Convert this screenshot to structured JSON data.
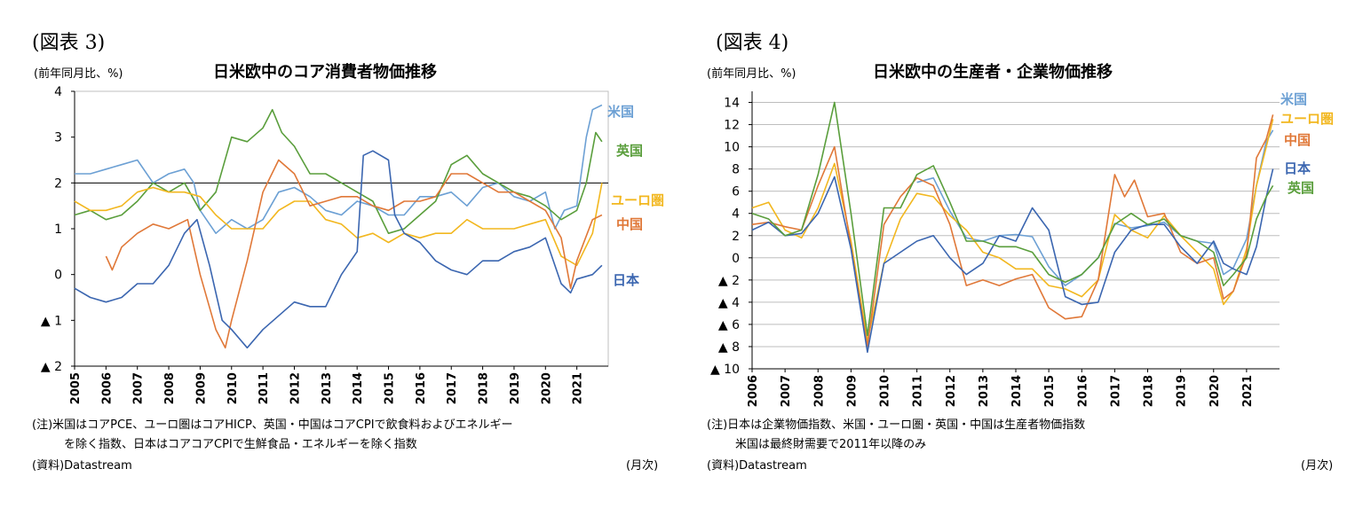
{
  "figures": [
    {
      "label": "(図表 3)",
      "unit": "(前年同月比、%)",
      "title": "日米欧中のコア消費者物価推移",
      "notes": [
        "(注)米国はコアPCE、ユーロ圏はコアHICP、英国・中国はコアCPIで飲食料およびエネルギー",
        "を除く指数、日本はコアコアCPIで生鮮食品・エネルギーを除く指数"
      ],
      "source": "(資料)Datastream",
      "xunit": "(月次)"
    },
    {
      "label": "(図表 4)",
      "unit": "(前年同月比、%)",
      "title": "日米欧中の生産者・企業物価推移",
      "notes": [
        "(注)日本は企業物価指数、米国・ユーロ圏・英国・中国は生産者物価指数",
        "米国は最終財需要で2011年以降のみ"
      ],
      "source": "(資料)Datastream",
      "xunit": "(月次)"
    }
  ],
  "colors": {
    "us": "#6ca0d4",
    "uk": "#5a9e3c",
    "eu": "#f2b71f",
    "cn": "#e07838",
    "jp": "#3b66b0"
  },
  "chart_data": [
    {
      "type": "line",
      "title": "日米欧中のコア消費者物価推移",
      "ylabel": "(前年同月比、%)",
      "xlabel": "(月次)",
      "ylim": [
        -2,
        4
      ],
      "xlim": [
        2005,
        2022
      ],
      "ytick_values": [
        4,
        3,
        2,
        1,
        0,
        -1,
        -2
      ],
      "ytick_labels": [
        "4",
        "3",
        "2",
        "1",
        "0",
        "▲ 1",
        "▲ 2"
      ],
      "xtick_values": [
        2005,
        2006,
        2007,
        2008,
        2009,
        2010,
        2011,
        2012,
        2013,
        2014,
        2015,
        2016,
        2017,
        2018,
        2019,
        2020,
        2021
      ],
      "xtick_labels": [
        "2005",
        "2006",
        "2007",
        "2008",
        "2009",
        "2010",
        "2011",
        "2012",
        "2013",
        "2014",
        "2015",
        "2016",
        "2017",
        "2018",
        "2019",
        "2020",
        "2021"
      ],
      "reference_line": 2,
      "series": [
        {
          "key": "us",
          "name": "米国",
          "x": [
            2005,
            2005.5,
            2006,
            2006.5,
            2007,
            2007.5,
            2008,
            2008.5,
            2008.8,
            2009,
            2009.5,
            2010,
            2010.5,
            2011,
            2011.5,
            2012,
            2012.5,
            2013,
            2013.5,
            2014,
            2014.5,
            2015,
            2015.5,
            2016,
            2016.5,
            2017,
            2017.5,
            2018,
            2018.5,
            2019,
            2019.5,
            2020,
            2020.3,
            2020.6,
            2021,
            2021.3,
            2021.5,
            2021.8
          ],
          "y": [
            2.2,
            2.2,
            2.3,
            2.4,
            2.5,
            2.0,
            2.2,
            2.3,
            2.0,
            1.4,
            0.9,
            1.2,
            1.0,
            1.2,
            1.8,
            1.9,
            1.7,
            1.4,
            1.3,
            1.6,
            1.5,
            1.3,
            1.3,
            1.7,
            1.7,
            1.8,
            1.5,
            1.9,
            2.0,
            1.7,
            1.6,
            1.8,
            1.0,
            1.4,
            1.5,
            3.0,
            3.6,
            3.7
          ]
        },
        {
          "key": "uk",
          "name": "英国",
          "x": [
            2005,
            2005.5,
            2006,
            2006.5,
            2007,
            2007.5,
            2008,
            2008.5,
            2009,
            2009.5,
            2010,
            2010.5,
            2011,
            2011.3,
            2011.6,
            2012,
            2012.5,
            2013,
            2013.5,
            2014,
            2014.5,
            2015,
            2015.5,
            2016,
            2016.5,
            2017,
            2017.5,
            2018,
            2018.5,
            2019,
            2019.5,
            2020,
            2020.5,
            2021,
            2021.3,
            2021.6,
            2021.8
          ],
          "y": [
            1.3,
            1.4,
            1.2,
            1.3,
            1.6,
            2.0,
            1.8,
            2.0,
            1.4,
            1.8,
            3.0,
            2.9,
            3.2,
            3.6,
            3.1,
            2.8,
            2.2,
            2.2,
            2.0,
            1.8,
            1.6,
            0.9,
            1.0,
            1.3,
            1.6,
            2.4,
            2.6,
            2.2,
            2.0,
            1.8,
            1.7,
            1.5,
            1.2,
            1.4,
            2.0,
            3.1,
            2.9
          ]
        },
        {
          "key": "eu",
          "name": "ユーロ圏",
          "x": [
            2005,
            2005.5,
            2006,
            2006.5,
            2007,
            2007.5,
            2008,
            2008.5,
            2009,
            2009.5,
            2010,
            2010.5,
            2011,
            2011.5,
            2012,
            2012.5,
            2013,
            2013.5,
            2014,
            2014.5,
            2015,
            2015.5,
            2016,
            2016.5,
            2017,
            2017.5,
            2018,
            2018.5,
            2019,
            2019.5,
            2020,
            2020.5,
            2021,
            2021.5,
            2021.8
          ],
          "y": [
            1.6,
            1.4,
            1.4,
            1.5,
            1.8,
            1.9,
            1.8,
            1.8,
            1.7,
            1.3,
            1.0,
            1.0,
            1.0,
            1.4,
            1.6,
            1.6,
            1.2,
            1.1,
            0.8,
            0.9,
            0.7,
            0.9,
            0.8,
            0.9,
            0.9,
            1.2,
            1.0,
            1.0,
            1.0,
            1.1,
            1.2,
            0.4,
            0.2,
            0.9,
            2.0
          ]
        },
        {
          "key": "cn",
          "name": "中国",
          "x": [
            2006,
            2006.2,
            2006.5,
            2007,
            2007.5,
            2008,
            2008.6,
            2009,
            2009.5,
            2009.8,
            2010,
            2010.5,
            2011,
            2011.5,
            2012,
            2012.5,
            2013,
            2013.5,
            2014,
            2014.5,
            2015,
            2015.5,
            2016,
            2016.5,
            2017,
            2017.5,
            2018,
            2018.5,
            2019,
            2019.5,
            2020,
            2020.5,
            2020.8,
            2021,
            2021.5,
            2021.8
          ],
          "y": [
            0.4,
            0.1,
            0.6,
            0.9,
            1.1,
            1.0,
            1.2,
            0.0,
            -1.2,
            -1.6,
            -1.0,
            0.3,
            1.8,
            2.5,
            2.2,
            1.5,
            1.6,
            1.7,
            1.7,
            1.5,
            1.4,
            1.6,
            1.6,
            1.7,
            2.2,
            2.2,
            2.0,
            1.8,
            1.8,
            1.6,
            1.4,
            0.8,
            -0.3,
            0.3,
            1.2,
            1.3
          ]
        },
        {
          "key": "jp",
          "name": "日本",
          "x": [
            2005,
            2005.5,
            2006,
            2006.5,
            2007,
            2007.5,
            2008,
            2008.5,
            2008.9,
            2009.3,
            2009.7,
            2010,
            2010.5,
            2011,
            2011.5,
            2012,
            2012.5,
            2013,
            2013.5,
            2014,
            2014.2,
            2014.5,
            2015,
            2015.2,
            2015.5,
            2016,
            2016.5,
            2017,
            2017.5,
            2018,
            2018.5,
            2019,
            2019.5,
            2020,
            2020.5,
            2020.8,
            2021,
            2021.5,
            2021.8
          ],
          "y": [
            -0.3,
            -0.5,
            -0.6,
            -0.5,
            -0.2,
            -0.2,
            0.2,
            0.9,
            1.2,
            0.2,
            -1.0,
            -1.2,
            -1.6,
            -1.2,
            -0.9,
            -0.6,
            -0.7,
            -0.7,
            0.0,
            0.5,
            2.6,
            2.7,
            2.5,
            1.3,
            0.9,
            0.7,
            0.3,
            0.1,
            0.0,
            0.3,
            0.3,
            0.5,
            0.6,
            0.8,
            -0.2,
            -0.4,
            -0.1,
            0.0,
            0.2
          ]
        }
      ]
    },
    {
      "type": "line",
      "title": "日米欧中の生産者・企業物価推移",
      "ylabel": "(前年同月比、%)",
      "xlabel": "(月次)",
      "ylim": [
        -10,
        15
      ],
      "xlim": [
        2006,
        2022
      ],
      "ytick_values": [
        14,
        12,
        10,
        8,
        6,
        4,
        2,
        0,
        -2,
        -4,
        -6,
        -8,
        -10
      ],
      "ytick_labels": [
        "14",
        "12",
        "10",
        "8",
        "6",
        "4",
        "2",
        "0",
        "▲ 2",
        "▲ 4",
        "▲ 6",
        "▲ 8",
        "▲ 10"
      ],
      "xtick_values": [
        2006,
        2007,
        2008,
        2009,
        2010,
        2011,
        2012,
        2013,
        2014,
        2015,
        2016,
        2017,
        2018,
        2019,
        2020,
        2021
      ],
      "xtick_labels": [
        "2006",
        "2007",
        "2008",
        "2009",
        "2010",
        "2011",
        "2012",
        "2013",
        "2014",
        "2015",
        "2016",
        "2017",
        "2018",
        "2019",
        "2020",
        "2021"
      ],
      "series": [
        {
          "key": "us",
          "name": "米国",
          "x": [
            2011,
            2011.5,
            2012,
            2012.5,
            2013,
            2013.5,
            2014,
            2014.5,
            2015,
            2015.5,
            2016,
            2016.5,
            2017,
            2017.5,
            2018,
            2018.5,
            2019,
            2019.5,
            2020,
            2020.3,
            2020.6,
            2021,
            2021.3,
            2021.6,
            2021.8
          ],
          "y": [
            6.8,
            7.2,
            4.2,
            1.8,
            1.5,
            2.0,
            2.1,
            1.9,
            -0.8,
            -2.5,
            -1.5,
            0.0,
            3.1,
            2.7,
            2.9,
            3.2,
            2.0,
            1.5,
            1.3,
            -1.5,
            -0.9,
            1.7,
            6.5,
            10.5,
            11.5
          ]
        },
        {
          "key": "eu",
          "name": "ユーロ圏",
          "x": [
            2006,
            2006.5,
            2007,
            2007.5,
            2008,
            2008.5,
            2009,
            2009.5,
            2010,
            2010.5,
            2011,
            2011.5,
            2012,
            2012.5,
            2013,
            2013.5,
            2014,
            2014.5,
            2015,
            2015.5,
            2016,
            2016.5,
            2017,
            2017.5,
            2018,
            2018.5,
            2019,
            2019.5,
            2020,
            2020.3,
            2020.6,
            2021,
            2021.3,
            2021.6,
            2021.8
          ],
          "y": [
            4.5,
            5.0,
            2.5,
            1.8,
            4.5,
            8.5,
            1.5,
            -7.5,
            -0.5,
            3.5,
            5.8,
            5.5,
            3.8,
            2.5,
            0.5,
            0.0,
            -1.0,
            -1.0,
            -2.5,
            -2.8,
            -3.5,
            -2.0,
            3.9,
            2.5,
            1.8,
            3.8,
            2.0,
            0.5,
            -1.0,
            -4.2,
            -3.0,
            0.8,
            6.5,
            10.0,
            12.5
          ]
        },
        {
          "key": "cn",
          "name": "中国",
          "x": [
            2006,
            2006.5,
            2007,
            2007.5,
            2008,
            2008.5,
            2009,
            2009.5,
            2010,
            2010.5,
            2011,
            2011.5,
            2012,
            2012.5,
            2013,
            2013.5,
            2014,
            2014.5,
            2015,
            2015.5,
            2016,
            2016.5,
            2017,
            2017.3,
            2017.6,
            2018,
            2018.5,
            2019,
            2019.5,
            2020,
            2020.3,
            2020.6,
            2021,
            2021.3,
            2021.6,
            2021.8
          ],
          "y": [
            3.0,
            3.2,
            2.8,
            2.5,
            6.5,
            10.0,
            1.0,
            -8.0,
            3.0,
            5.5,
            7.2,
            6.5,
            3.0,
            -2.5,
            -2.0,
            -2.5,
            -1.9,
            -1.5,
            -4.5,
            -5.5,
            -5.3,
            -2.0,
            7.5,
            5.5,
            7.0,
            3.7,
            4.0,
            0.5,
            -0.5,
            0.0,
            -3.7,
            -3.0,
            0.3,
            9.0,
            10.7,
            12.9
          ]
        },
        {
          "key": "jp",
          "name": "日本",
          "x": [
            2006,
            2006.5,
            2007,
            2007.5,
            2008,
            2008.5,
            2009,
            2009.5,
            2010,
            2010.5,
            2011,
            2011.5,
            2012,
            2012.5,
            2013,
            2013.5,
            2014,
            2014.5,
            2015,
            2015.5,
            2016,
            2016.5,
            2017,
            2017.5,
            2018,
            2018.5,
            2019,
            2019.5,
            2020,
            2020.3,
            2020.6,
            2021,
            2021.3,
            2021.6,
            2021.8
          ],
          "y": [
            2.5,
            3.2,
            2.0,
            2.2,
            4.0,
            7.3,
            0.8,
            -8.5,
            -0.5,
            0.5,
            1.5,
            2.0,
            0.0,
            -1.5,
            -0.5,
            2.0,
            1.5,
            4.5,
            2.5,
            -3.5,
            -4.2,
            -4.0,
            0.5,
            2.5,
            3.0,
            3.0,
            1.0,
            -0.5,
            1.5,
            -0.5,
            -1.0,
            -1.5,
            1.0,
            5.5,
            8.0
          ]
        },
        {
          "key": "uk",
          "name": "英国",
          "x": [
            2006,
            2006.5,
            2007,
            2007.5,
            2008,
            2008.5,
            2009,
            2009.5,
            2010,
            2010.5,
            2011,
            2011.5,
            2012,
            2012.5,
            2013,
            2013.5,
            2014,
            2014.5,
            2015,
            2015.5,
            2016,
            2016.5,
            2017,
            2017.5,
            2018,
            2018.5,
            2019,
            2019.5,
            2020,
            2020.3,
            2020.6,
            2021,
            2021.3,
            2021.6,
            2021.8
          ],
          "y": [
            4.0,
            3.5,
            2.0,
            2.5,
            7.5,
            14.0,
            4.0,
            -7.0,
            4.5,
            4.5,
            7.5,
            8.3,
            5.0,
            1.5,
            1.5,
            1.0,
            1.0,
            0.5,
            -1.5,
            -2.2,
            -1.5,
            0.0,
            3.0,
            4.0,
            3.0,
            3.5,
            2.0,
            1.5,
            0.5,
            -2.5,
            -1.5,
            0.0,
            3.5,
            5.5,
            6.5
          ]
        }
      ]
    }
  ]
}
